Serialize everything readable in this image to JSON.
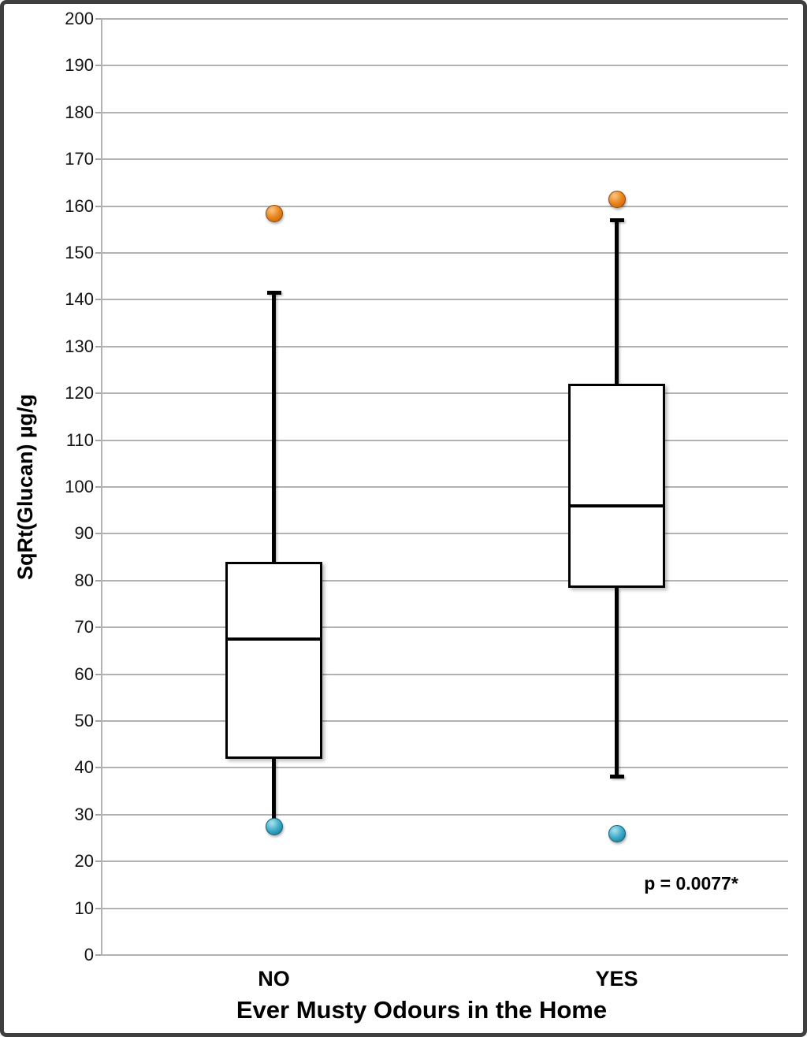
{
  "chart_data": {
    "type": "box",
    "title": "",
    "xlabel": "Ever Musty Odours in the Home",
    "ylabel": "SqRt(Glucan) µg/g",
    "ylim": [
      0,
      200
    ],
    "ytick_step": 10,
    "grid": true,
    "legend": null,
    "categories": [
      "NO",
      "YES"
    ],
    "series": [
      {
        "category": "NO",
        "whisker_low": 27.5,
        "q1": 42,
        "median": 67.5,
        "q3": 84,
        "whisker_high": 141.5,
        "lower_cap": false,
        "upper_cap": true,
        "outlier_high": 158.5,
        "outlier_low": 27.5
      },
      {
        "category": "YES",
        "whisker_low": 38,
        "q1": 78.5,
        "median": 96,
        "q3": 122,
        "whisker_high": 157,
        "lower_cap": true,
        "upper_cap": true,
        "outlier_high": 161.5,
        "outlier_low": 26
      }
    ],
    "annotation": "p = 0.0077*",
    "colors": {
      "outlier_high": "#ec8a22",
      "outlier_low": "#3fadc9",
      "box_fill": "#ffffff",
      "line": "#000000",
      "grid": "#b2b2b2",
      "frame": "#3f3f3f"
    }
  }
}
